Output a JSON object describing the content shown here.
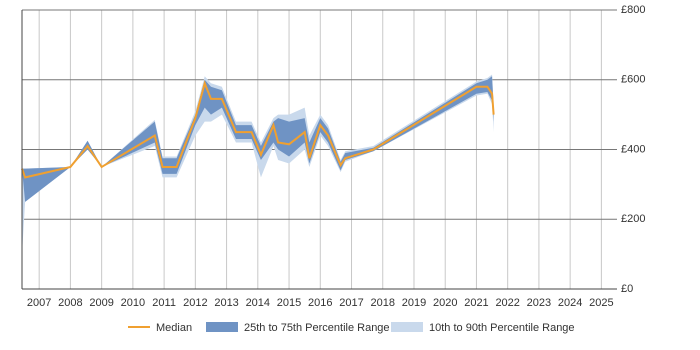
{
  "chart_data": {
    "type": "line",
    "x": [
      2006.45,
      2006.55,
      2008.0,
      2008.55,
      2009.0,
      2010.7,
      2010.95,
      2011.4,
      2012.0,
      2012.3,
      2012.5,
      2012.85,
      2013.3,
      2013.8,
      2014.1,
      2014.5,
      2014.65,
      2015.0,
      2015.5,
      2015.65,
      2016.0,
      2016.25,
      2016.65,
      2016.8,
      2017.7,
      2021.0,
      2021.35,
      2021.5,
      2021.55
    ],
    "series": [
      {
        "name": "Median",
        "color": "#f0a030",
        "values": [
          345,
          320,
          350,
          410,
          350,
          440,
          350,
          350,
          490,
          590,
          545,
          545,
          450,
          450,
          385,
          470,
          420,
          415,
          450,
          375,
          470,
          440,
          355,
          375,
          400,
          580,
          580,
          560,
          500
        ]
      },
      {
        "name": "25th to 75th Percentile Range",
        "color": "#6f93c4",
        "lower": [
          345,
          250,
          350,
          400,
          350,
          420,
          330,
          330,
          470,
          520,
          500,
          520,
          430,
          430,
          370,
          420,
          400,
          380,
          420,
          360,
          450,
          420,
          340,
          370,
          395,
          560,
          565,
          540,
          480
        ],
        "upper": [
          345,
          345,
          350,
          425,
          350,
          480,
          375,
          375,
          500,
          600,
          580,
          570,
          470,
          470,
          410,
          480,
          490,
          480,
          490,
          420,
          490,
          460,
          365,
          390,
          405,
          590,
          600,
          610,
          520
        ]
      },
      {
        "name": "10th to 90th Percentile Range",
        "color": "#c9d9ec",
        "lower": [
          100,
          250,
          350,
          400,
          350,
          410,
          320,
          320,
          440,
          480,
          480,
          500,
          420,
          420,
          320,
          410,
          370,
          360,
          400,
          350,
          440,
          410,
          335,
          365,
          395,
          555,
          560,
          530,
          450
        ],
        "upper": [
          345,
          345,
          350,
          425,
          350,
          485,
          380,
          380,
          510,
          610,
          590,
          580,
          480,
          480,
          420,
          490,
          500,
          500,
          520,
          440,
          500,
          470,
          370,
          395,
          410,
          595,
          605,
          615,
          530
        ]
      }
    ],
    "xlim": [
      2006.45,
      2025.5
    ],
    "xticks": [
      2007,
      2008,
      2009,
      2010,
      2011,
      2012,
      2013,
      2014,
      2015,
      2016,
      2017,
      2018,
      2019,
      2020,
      2021,
      2022,
      2023,
      2024,
      2025
    ],
    "ylim": [
      0,
      800
    ],
    "yticks": [
      {
        "value": 0,
        "label": "£0"
      },
      {
        "value": 200,
        "label": "£200"
      },
      {
        "value": 400,
        "label": "£400"
      },
      {
        "value": 600,
        "label": "£600"
      },
      {
        "value": 800,
        "label": "£800"
      }
    ],
    "grid": true
  }
}
